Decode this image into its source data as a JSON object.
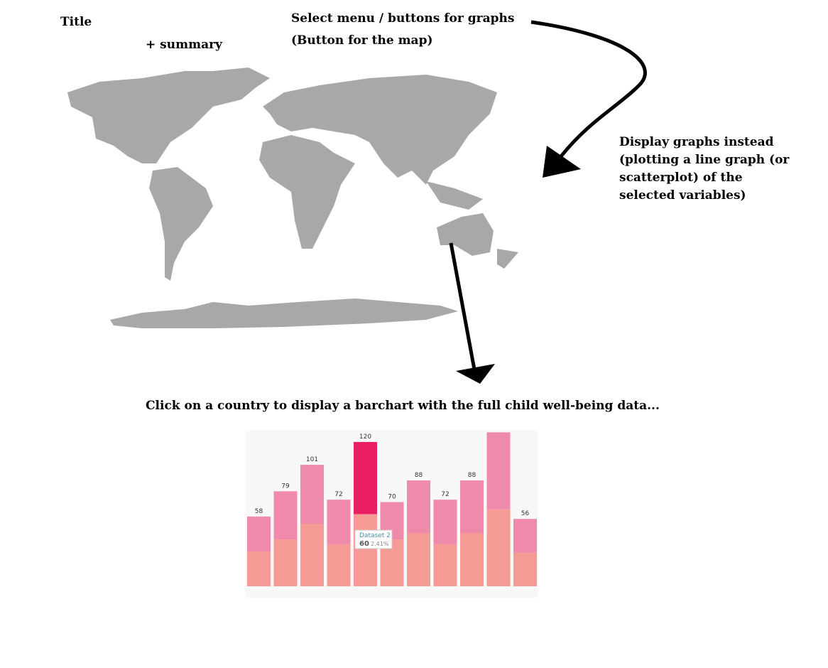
{
  "header": {
    "title": "Title",
    "summary": "+ summary"
  },
  "notes": {
    "menu": [
      "Select menu / buttons for graphs",
      "(Button for the map)"
    ],
    "graphs": [
      "Display graphs instead",
      "(plotting a line graph (or",
      "scatterplot) of the",
      "selected variables)"
    ],
    "click": "Click on a country to display a barchart with the full child well-being data..."
  },
  "chart_data": {
    "type": "stacked-bar",
    "ylim": [
      0,
      130
    ],
    "series": [
      {
        "name": "Dataset 2",
        "color": "#f59a94",
        "values": [
          29,
          39,
          52,
          35,
          60,
          39,
          44,
          35,
          44,
          64,
          28
        ]
      },
      {
        "color": "#f08aab",
        "values": [
          29,
          40,
          49,
          37,
          60,
          31,
          44,
          37,
          44,
          64,
          28
        ]
      }
    ],
    "totals": [
      58,
      79,
      101,
      72,
      120,
      70,
      88,
      72,
      88,
      null,
      56
    ],
    "highlight": {
      "index": 4,
      "color": "#e91e63"
    },
    "tooltip": {
      "percent": "2.41%"
    }
  }
}
